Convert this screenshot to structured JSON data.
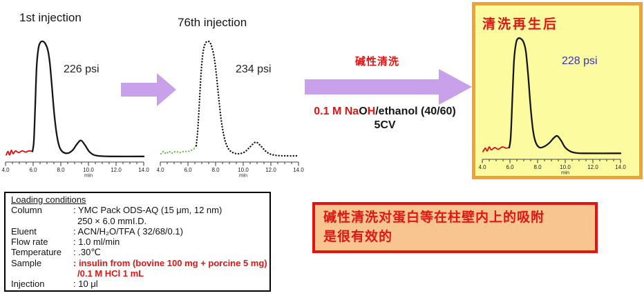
{
  "chromatograms": [
    {
      "title": "1st injection",
      "pressure": "226 psi"
    },
    {
      "title": "76th injection",
      "pressure": "234 psi"
    },
    {
      "title": "清洗再生后",
      "pressure": "228 psi"
    }
  ],
  "process": {
    "cleaning_label": "碱性清洗",
    "reagent_segments": [
      {
        "t": "0.1 M Na"
      },
      {
        "t": "O"
      },
      {
        "t": "H"
      },
      {
        "t": "/ethanol (40/60)"
      }
    ],
    "cycles": "5CV"
  },
  "loading_conditions": {
    "title": "Loading conditions",
    "rows": [
      {
        "label": "Column",
        "value": ": YMC Pack ODS-AQ (15 μm, 12 nm)"
      },
      {
        "label": "",
        "value": "250 × 6.0 mmI.D."
      },
      {
        "label": "Eluent",
        "value": ": ACN/H₂O/TFA ( 32/68/0.1)"
      },
      {
        "label": "Flow rate",
        "value": ": 1.0 ml/min"
      },
      {
        "label": "Temperature",
        "value": ": .30℃"
      },
      {
        "label": "Sample",
        "value": ": insulin from (bovine 100 mg + porcine 5 mg)"
      },
      {
        "label": "",
        "value": "/0.1 M HCl 1 mL"
      },
      {
        "label": "Injection",
        "value": ": 10 μl"
      }
    ]
  },
  "conclusion": {
    "lines": [
      "碱性清洗对蛋白等在柱壁内上的吸附",
      "是很有效的"
    ]
  },
  "colors": {
    "accent_red": "#e31414",
    "trace_black": "#161616",
    "lead_red": "#e01212",
    "lead_green": "#63b93e",
    "pressure_blue": "#3434bb",
    "arrow_purple": "#c9a0ea",
    "highlight_bg": "#fdfba0",
    "highlight_border": "#f0a232",
    "conclusion_bg": "#f8c48f",
    "conclusion_border": "#ea1010",
    "axis_gray": "#444444"
  },
  "chart_data": [
    {
      "type": "line",
      "title": "1st injection",
      "annotation": "226 psi",
      "x_unit": "min",
      "xlim": [
        4,
        14
      ],
      "x_tick_minutes": [
        4,
        6,
        8,
        10,
        12,
        14
      ],
      "x_tick_labels": [
        "4.0",
        "6.0",
        "8.0",
        "10.0",
        "12.0",
        "14.0"
      ],
      "series": [
        {
          "name": "baseline-lead",
          "style": "solid",
          "color_key": "lead_red",
          "width": 1.9,
          "points": [
            [
              4.05,
              0.02
            ],
            [
              4.18,
              0.05
            ],
            [
              4.3,
              0.02
            ],
            [
              4.42,
              0.06
            ],
            [
              4.55,
              0.03
            ],
            [
              4.72,
              0.055
            ],
            [
              4.95,
              0.04
            ],
            [
              5.2,
              0.055
            ],
            [
              5.45,
              0.045
            ],
            [
              5.7,
              0.055
            ],
            [
              5.95,
              0.05
            ]
          ]
        },
        {
          "name": "insulin-trace",
          "style": "solid",
          "color_key": "trace_black",
          "width": 2.3,
          "points": [
            [
              5.95,
              0.05
            ],
            [
              6.05,
              0.14
            ],
            [
              6.15,
              0.45
            ],
            [
              6.25,
              0.78
            ],
            [
              6.38,
              0.94
            ],
            [
              6.52,
              0.99
            ],
            [
              6.7,
              1.0
            ],
            [
              6.88,
              0.98
            ],
            [
              7.05,
              0.93
            ],
            [
              7.2,
              0.82
            ],
            [
              7.35,
              0.62
            ],
            [
              7.52,
              0.38
            ],
            [
              7.7,
              0.2
            ],
            [
              7.9,
              0.09
            ],
            [
              8.15,
              0.045
            ],
            [
              8.5,
              0.035
            ],
            [
              8.85,
              0.06
            ],
            [
              9.15,
              0.11
            ],
            [
              9.45,
              0.145
            ],
            [
              9.75,
              0.105
            ],
            [
              10.05,
              0.05
            ],
            [
              10.4,
              0.02
            ],
            [
              10.9,
              0.01
            ],
            [
              11.6,
              0.007
            ],
            [
              14.0,
              0.007
            ]
          ]
        }
      ]
    },
    {
      "type": "line",
      "title": "76th injection",
      "annotation": "234 psi",
      "x_unit": "min",
      "xlim": [
        4,
        14
      ],
      "x_tick_minutes": [
        4,
        6,
        8,
        10,
        12,
        14
      ],
      "x_tick_labels": [
        "4.0",
        "6.0",
        "8.0",
        "10.0",
        "12.0",
        "14.0"
      ],
      "series": [
        {
          "name": "baseline-lead",
          "style": "dotted",
          "color_key": "lead_green",
          "width": 2.2,
          "points": [
            [
              4.05,
              0.03
            ],
            [
              4.25,
              0.05
            ],
            [
              4.42,
              0.03
            ],
            [
              4.62,
              0.05
            ],
            [
              4.85,
              0.035
            ],
            [
              5.12,
              0.05
            ],
            [
              5.4,
              0.04
            ],
            [
              5.7,
              0.05
            ],
            [
              6.0,
              0.05
            ],
            [
              6.25,
              0.06
            ],
            [
              6.45,
              0.075
            ],
            [
              6.6,
              0.1
            ]
          ]
        },
        {
          "name": "insulin-trace",
          "style": "dotted",
          "color_key": "trace_black",
          "width": 2.4,
          "points": [
            [
              6.6,
              0.1
            ],
            [
              6.72,
              0.25
            ],
            [
              6.85,
              0.52
            ],
            [
              6.97,
              0.76
            ],
            [
              7.1,
              0.91
            ],
            [
              7.25,
              0.98
            ],
            [
              7.42,
              1.0
            ],
            [
              7.6,
              0.99
            ],
            [
              7.75,
              0.94
            ],
            [
              7.9,
              0.86
            ],
            [
              8.05,
              0.72
            ],
            [
              8.22,
              0.52
            ],
            [
              8.42,
              0.31
            ],
            [
              8.65,
              0.16
            ],
            [
              8.92,
              0.075
            ],
            [
              9.25,
              0.04
            ],
            [
              9.65,
              0.03
            ],
            [
              10.1,
              0.045
            ],
            [
              10.5,
              0.09
            ],
            [
              10.9,
              0.13
            ],
            [
              11.25,
              0.1
            ],
            [
              11.6,
              0.055
            ],
            [
              11.95,
              0.028
            ],
            [
              12.45,
              0.015
            ],
            [
              13.1,
              0.012
            ],
            [
              14.0,
              0.012
            ]
          ]
        }
      ]
    },
    {
      "type": "line",
      "title": "清洗再生后",
      "annotation": "228 psi",
      "x_unit": "min",
      "xlim": [
        4,
        14
      ],
      "x_tick_minutes": [
        4,
        6,
        8,
        10,
        12,
        14
      ],
      "x_tick_labels": [
        "4.0",
        "6.0",
        "8.0",
        "10.0",
        "12.0",
        "14.0"
      ],
      "series": [
        {
          "name": "baseline-lead",
          "style": "solid",
          "color_key": "lead_red",
          "width": 1.9,
          "points": [
            [
              4.05,
              0.025
            ],
            [
              4.22,
              0.055
            ],
            [
              4.35,
              0.03
            ],
            [
              4.5,
              0.065
            ],
            [
              4.65,
              0.04
            ],
            [
              4.9,
              0.06
            ],
            [
              5.15,
              0.045
            ],
            [
              5.45,
              0.065
            ],
            [
              5.72,
              0.055
            ],
            [
              5.95,
              0.06
            ]
          ]
        },
        {
          "name": "insulin-trace",
          "style": "solid",
          "color_key": "trace_black",
          "width": 2.3,
          "points": [
            [
              5.95,
              0.06
            ],
            [
              6.06,
              0.16
            ],
            [
              6.18,
              0.5
            ],
            [
              6.3,
              0.82
            ],
            [
              6.44,
              0.96
            ],
            [
              6.58,
              1.0
            ],
            [
              6.78,
              1.0
            ],
            [
              6.98,
              0.97
            ],
            [
              7.15,
              0.89
            ],
            [
              7.32,
              0.68
            ],
            [
              7.5,
              0.4
            ],
            [
              7.68,
              0.2
            ],
            [
              7.88,
              0.1
            ],
            [
              8.15,
              0.06
            ],
            [
              8.5,
              0.07
            ],
            [
              8.85,
              0.1
            ],
            [
              9.15,
              0.14
            ],
            [
              9.42,
              0.16
            ],
            [
              9.7,
              0.12
            ],
            [
              10.0,
              0.06
            ],
            [
              10.4,
              0.025
            ],
            [
              10.9,
              0.012
            ],
            [
              11.6,
              0.01
            ],
            [
              14.0,
              0.01
            ]
          ]
        }
      ]
    }
  ]
}
